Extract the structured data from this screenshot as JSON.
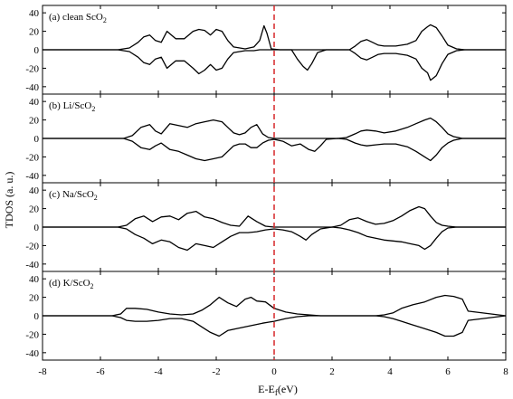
{
  "chart_data": {
    "type": "line",
    "xlabel": "E-E",
    "xlabel_sub": "f",
    "xlabel_unit": "(eV)",
    "ylabel": "TDOS (a. u.)",
    "xlim": [
      -8,
      8
    ],
    "ylim": [
      -48,
      48
    ],
    "xticks": [
      -8,
      -6,
      -4,
      -2,
      0,
      2,
      4,
      6,
      8
    ],
    "yticks": [
      40,
      20,
      0,
      -20,
      -40
    ],
    "fermi_level": 0,
    "fermi_color": "#d62728",
    "line_color": "#000000",
    "grid": false,
    "panels": [
      {
        "label": "(a) clean ScO",
        "label_sub": "2",
        "series": [
          {
            "spin": "up",
            "x": [
              -8,
              -5.4,
              -5.0,
              -4.7,
              -4.5,
              -4.3,
              -4.1,
              -3.9,
              -3.7,
              -3.4,
              -3.1,
              -2.8,
              -2.6,
              -2.4,
              -2.2,
              -2.0,
              -1.8,
              -1.6,
              -1.4,
              -1.0,
              -0.7,
              -0.5,
              -0.35,
              -0.25,
              -0.1,
              0.2,
              0.6,
              0.8,
              1.0,
              1.15,
              1.3,
              1.5,
              1.8,
              2.3,
              2.6,
              2.8,
              3.0,
              3.2,
              3.4,
              3.6,
              3.8,
              4.2,
              4.6,
              4.9,
              5.1,
              5.3,
              5.4,
              5.6,
              5.8,
              6.0,
              6.3,
              6.6,
              8
            ],
            "y": [
              0,
              0,
              2,
              8,
              14,
              16,
              10,
              8,
              20,
              12,
              12,
              20,
              22,
              21,
              16,
              22,
              20,
              10,
              3,
              1,
              3,
              10,
              26,
              18,
              1,
              0,
              0,
              -10,
              -18,
              -22,
              -15,
              -3,
              0,
              0,
              0,
              4,
              9,
              11,
              8,
              5,
              4,
              4,
              6,
              10,
              20,
              25,
              27,
              24,
              15,
              5,
              1,
              0,
              0
            ]
          },
          {
            "spin": "down",
            "x": [
              -8,
              -5.4,
              -5.0,
              -4.7,
              -4.5,
              -4.3,
              -4.1,
              -3.9,
              -3.7,
              -3.4,
              -3.1,
              -2.8,
              -2.6,
              -2.4,
              -2.2,
              -2.0,
              -1.8,
              -1.6,
              -1.4,
              -1.0,
              -0.7,
              -0.5,
              -0.2,
              0,
              2.3,
              2.6,
              2.8,
              3.0,
              3.2,
              3.4,
              3.6,
              3.8,
              4.2,
              4.6,
              4.9,
              5.1,
              5.3,
              5.4,
              5.6,
              5.8,
              6.0,
              6.3,
              6.6,
              8
            ],
            "y": [
              0,
              0,
              -2,
              -8,
              -14,
              -16,
              -10,
              -8,
              -20,
              -12,
              -12,
              -20,
              -26,
              -22,
              -16,
              -22,
              -20,
              -10,
              -3,
              -1,
              -1,
              0,
              0,
              0,
              0,
              0,
              -4,
              -9,
              -11,
              -8,
              -5,
              -4,
              -4,
              -6,
              -10,
              -20,
              -25,
              -33,
              -28,
              -15,
              -5,
              -1,
              0,
              0
            ]
          }
        ]
      },
      {
        "label": "(b) Li/ScO",
        "label_sub": "2",
        "series": [
          {
            "spin": "up",
            "x": [
              -8,
              -5.2,
              -4.9,
              -4.6,
              -4.3,
              -4.1,
              -3.9,
              -3.6,
              -3.3,
              -3.0,
              -2.7,
              -2.4,
              -2.1,
              -1.8,
              -1.6,
              -1.4,
              -1.2,
              -1.0,
              -0.8,
              -0.6,
              -0.4,
              -0.2,
              0,
              0.3,
              0.6,
              0.9,
              1.2,
              1.5,
              1.8,
              2.2,
              2.5,
              2.8,
              3.0,
              3.2,
              3.5,
              3.8,
              4.2,
              4.6,
              4.9,
              5.2,
              5.4,
              5.6,
              5.8,
              6.0,
              6.2,
              6.5,
              8
            ],
            "y": [
              0,
              0,
              3,
              12,
              15,
              8,
              5,
              16,
              14,
              12,
              16,
              18,
              20,
              18,
              12,
              6,
              4,
              6,
              12,
              15,
              5,
              1,
              0,
              0,
              0,
              0,
              0,
              0,
              0,
              0,
              1,
              5,
              8,
              9,
              8,
              6,
              8,
              12,
              16,
              20,
              22,
              18,
              12,
              5,
              2,
              0,
              0
            ]
          },
          {
            "spin": "down",
            "x": [
              -8,
              -5.2,
              -4.9,
              -4.6,
              -4.3,
              -4.1,
              -3.9,
              -3.6,
              -3.3,
              -3.0,
              -2.7,
              -2.4,
              -2.1,
              -1.8,
              -1.6,
              -1.4,
              -1.2,
              -1.0,
              -0.8,
              -0.6,
              -0.4,
              -0.2,
              0,
              0.3,
              0.6,
              0.9,
              1.2,
              1.4,
              1.6,
              1.8,
              2.2,
              2.5,
              2.8,
              3.0,
              3.2,
              3.5,
              3.8,
              4.2,
              4.6,
              4.9,
              5.2,
              5.4,
              5.6,
              5.8,
              6.0,
              6.2,
              6.5,
              8
            ],
            "y": [
              0,
              0,
              -3,
              -10,
              -12,
              -8,
              -5,
              -12,
              -14,
              -18,
              -22,
              -24,
              -22,
              -20,
              -14,
              -8,
              -6,
              -6,
              -10,
              -10,
              -5,
              -2,
              -1,
              -3,
              -8,
              -6,
              -12,
              -14,
              -8,
              -1,
              0,
              -1,
              -5,
              -7,
              -8,
              -7,
              -6,
              -6,
              -9,
              -14,
              -20,
              -24,
              -18,
              -10,
              -5,
              -2,
              0,
              0
            ]
          }
        ]
      },
      {
        "label": "(c) Na/ScO",
        "label_sub": "2",
        "series": [
          {
            "spin": "up",
            "x": [
              -8,
              -5.4,
              -5.1,
              -4.8,
              -4.5,
              -4.2,
              -3.9,
              -3.6,
              -3.3,
              -3.0,
              -2.7,
              -2.4,
              -2.1,
              -1.8,
              -1.5,
              -1.2,
              -0.9,
              -0.6,
              -0.3,
              0,
              0.3,
              0.6,
              0.9,
              1.2,
              1.6,
              2.0,
              2.3,
              2.6,
              2.9,
              3.2,
              3.5,
              3.8,
              4.1,
              4.4,
              4.7,
              5.0,
              5.2,
              5.4,
              5.6,
              5.8,
              6.0,
              6.3,
              8
            ],
            "y": [
              0,
              0,
              2,
              9,
              12,
              6,
              11,
              12,
              8,
              15,
              17,
              11,
              9,
              5,
              2,
              1,
              12,
              6,
              1,
              0,
              0,
              0,
              0,
              0,
              0,
              0,
              2,
              8,
              10,
              6,
              3,
              4,
              7,
              12,
              18,
              22,
              20,
              12,
              5,
              2,
              1,
              0,
              0
            ]
          },
          {
            "spin": "down",
            "x": [
              -8,
              -5.4,
              -5.1,
              -4.8,
              -4.5,
              -4.2,
              -3.9,
              -3.6,
              -3.3,
              -3.0,
              -2.7,
              -2.4,
              -2.1,
              -1.8,
              -1.5,
              -1.2,
              -0.9,
              -0.6,
              -0.3,
              0,
              0.3,
              0.6,
              0.9,
              1.1,
              1.3,
              1.6,
              2.0,
              2.3,
              2.6,
              2.9,
              3.2,
              3.5,
              3.8,
              4.1,
              4.4,
              4.7,
              5.0,
              5.2,
              5.4,
              5.6,
              5.8,
              6.0,
              6.3,
              8
            ],
            "y": [
              0,
              0,
              -2,
              -8,
              -12,
              -18,
              -14,
              -16,
              -22,
              -25,
              -18,
              -20,
              -22,
              -16,
              -10,
              -6,
              -6,
              -5,
              -3,
              -2,
              -3,
              -5,
              -10,
              -14,
              -8,
              -2,
              0,
              -1,
              -3,
              -6,
              -10,
              -12,
              -14,
              -15,
              -16,
              -18,
              -20,
              -24,
              -20,
              -12,
              -5,
              -1,
              0,
              0
            ]
          }
        ]
      },
      {
        "label": "(d) K/ScO",
        "label_sub": "2",
        "series": [
          {
            "spin": "up",
            "x": [
              -8,
              -5.6,
              -5.3,
              -5.1,
              -4.8,
              -4.4,
              -4.0,
              -3.6,
              -3.2,
              -2.8,
              -2.5,
              -2.2,
              -1.9,
              -1.6,
              -1.3,
              -1.0,
              -0.8,
              -0.6,
              -0.3,
              0,
              0.4,
              0.8,
              1.2,
              1.6,
              2.0,
              2.4,
              2.8,
              3.2,
              3.5,
              3.8,
              4.1,
              4.4,
              4.8,
              5.2,
              5.6,
              5.9,
              6.2,
              6.5,
              6.7,
              8
            ],
            "y": [
              0,
              0,
              2,
              8,
              8,
              7,
              4,
              2,
              1,
              2,
              6,
              12,
              20,
              14,
              10,
              18,
              20,
              16,
              15,
              8,
              4,
              2,
              1,
              0,
              0,
              0,
              0,
              0,
              0,
              1,
              3,
              8,
              12,
              15,
              20,
              22,
              21,
              18,
              5,
              0
            ]
          },
          {
            "spin": "down",
            "x": [
              -8,
              -5.6,
              -5.3,
              -5.1,
              -4.8,
              -4.4,
              -4.0,
              -3.6,
              -3.2,
              -2.8,
              -2.5,
              -2.2,
              -1.9,
              -1.6,
              -1.3,
              -1.0,
              -0.7,
              -0.4,
              -0.2,
              0,
              0.4,
              0.8,
              1.2,
              1.6,
              2.0,
              2.4,
              2.8,
              3.2,
              3.5,
              3.8,
              4.1,
              4.4,
              4.8,
              5.2,
              5.6,
              5.9,
              6.2,
              6.5,
              6.7,
              8
            ],
            "y": [
              0,
              0,
              -2,
              -5,
              -6,
              -6,
              -5,
              -3,
              -3,
              -6,
              -12,
              -18,
              -22,
              -16,
              -14,
              -12,
              -10,
              -8,
              -7,
              -6,
              -3,
              -1,
              0,
              0,
              0,
              0,
              0,
              0,
              0,
              -1,
              -3,
              -6,
              -10,
              -14,
              -18,
              -22,
              -22,
              -18,
              -5,
              0
            ]
          }
        ]
      }
    ]
  }
}
